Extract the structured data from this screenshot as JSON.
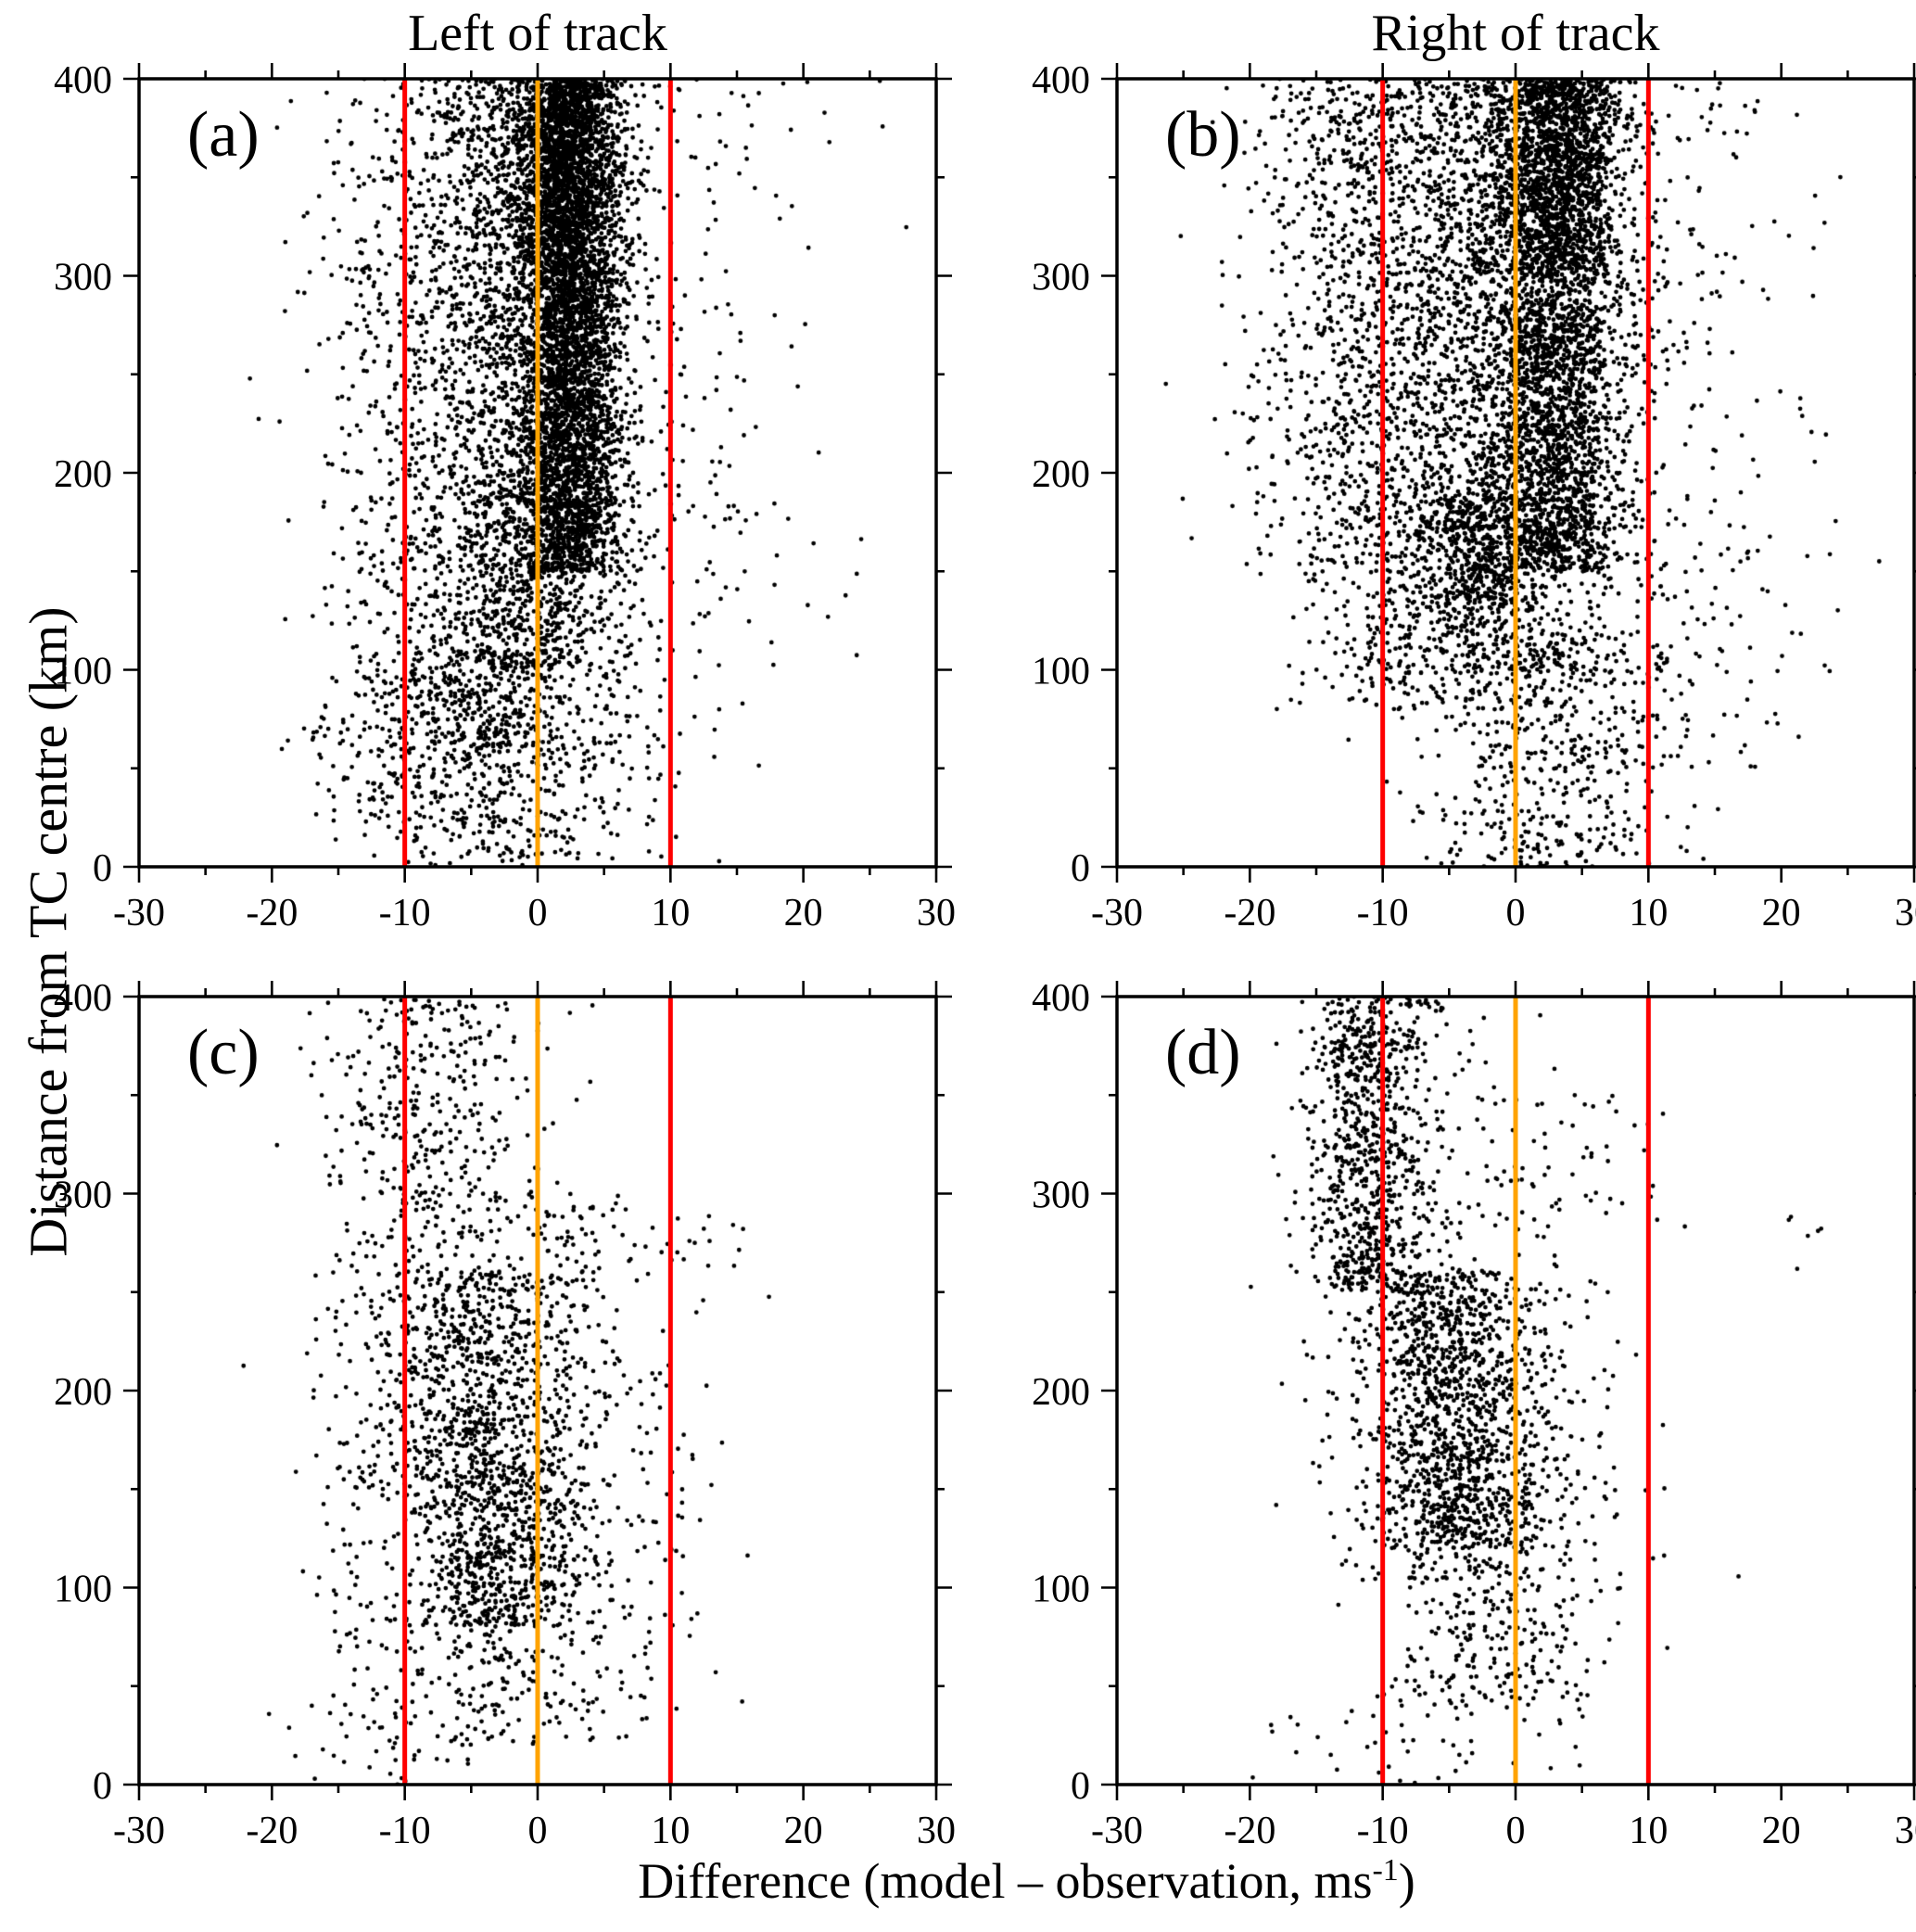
{
  "chart_data": {
    "type": "scatter",
    "layout": "2x2",
    "col_titles": [
      "Left of track",
      "Right of track"
    ],
    "xlabel_main": "Difference (model – observation, ms",
    "xlabel_sup": "-1",
    "xlabel_close": ")",
    "ylabel": "Distance from TC centre (km)",
    "x_range": [
      -30,
      30
    ],
    "y_range": [
      0,
      400
    ],
    "x_major_ticks": [
      -30,
      -20,
      -10,
      0,
      10,
      20,
      30
    ],
    "x_minor_step": 5,
    "y_major_ticks": [
      0,
      100,
      200,
      300,
      400
    ],
    "y_minor_step": 50,
    "grid": false,
    "legend": false,
    "marker": {
      "color": "#000000",
      "radius": 2.4
    },
    "frame_color": "#000000",
    "ref_lines": [
      {
        "x": -10,
        "color": "#fe0000",
        "width": 5
      },
      {
        "x": 0,
        "color": "#ffa300",
        "width": 5
      },
      {
        "x": 10,
        "color": "#fe0000",
        "width": 5
      }
    ],
    "cluster_encoding": "x gaussian (x_mean, x_sd), y uniform (y_min, y_max), n points each; deterministic seed per panel",
    "panels": [
      {
        "label": "(a)",
        "seed": 11,
        "clusters": [
          {
            "n": 3600,
            "x_mean": 2.5,
            "x_sd": 2.0,
            "y_min": 150,
            "y_max": 400
          },
          {
            "n": 900,
            "x_mean": 2.0,
            "x_sd": 1.6,
            "y_min": 300,
            "y_max": 400
          },
          {
            "n": 1500,
            "x_mean": 1.0,
            "x_sd": 3.2,
            "y_min": 100,
            "y_max": 400
          },
          {
            "n": 1300,
            "x_mean": -3.5,
            "x_sd": 3.5,
            "y_min": 60,
            "y_max": 400
          },
          {
            "n": 750,
            "x_mean": -9.0,
            "x_sd": 4.5,
            "y_min": 20,
            "y_max": 400
          },
          {
            "n": 600,
            "x_mean": -3.0,
            "x_sd": 5.5,
            "y_min": 0,
            "y_max": 110
          },
          {
            "n": 280,
            "x_mean": 7.0,
            "x_sd": 5.0,
            "y_min": 40,
            "y_max": 400
          },
          {
            "n": 80,
            "x_mean": 14.0,
            "x_sd": 6.0,
            "y_min": 100,
            "y_max": 400
          }
        ]
      },
      {
        "label": "(b)",
        "seed": 22,
        "clusters": [
          {
            "n": 2800,
            "x_mean": 3.0,
            "x_sd": 2.6,
            "y_min": 150,
            "y_max": 400
          },
          {
            "n": 700,
            "x_mean": 3.5,
            "x_sd": 2.2,
            "y_min": 300,
            "y_max": 400
          },
          {
            "n": 1700,
            "x_mean": -1.0,
            "x_sd": 4.0,
            "y_min": 100,
            "y_max": 400
          },
          {
            "n": 1200,
            "x_mean": -8.0,
            "x_sd": 4.0,
            "y_min": 80,
            "y_max": 400
          },
          {
            "n": 500,
            "x_mean": -14.0,
            "x_sd": 3.5,
            "y_min": 150,
            "y_max": 400
          },
          {
            "n": 350,
            "x_mean": -3.0,
            "x_sd": 2.0,
            "y_min": 130,
            "y_max": 190
          },
          {
            "n": 500,
            "x_mean": 2.0,
            "x_sd": 5.0,
            "y_min": 0,
            "y_max": 120
          },
          {
            "n": 320,
            "x_mean": 9.0,
            "x_sd": 5.0,
            "y_min": 50,
            "y_max": 400
          },
          {
            "n": 90,
            "x_mean": 16.0,
            "x_sd": 6.0,
            "y_min": 50,
            "y_max": 400
          }
        ]
      },
      {
        "label": "(c)",
        "seed": 33,
        "clusters": [
          {
            "n": 900,
            "x_mean": -4.0,
            "x_sd": 3.0,
            "y_min": 80,
            "y_max": 260
          },
          {
            "n": 520,
            "x_mean": -7.0,
            "x_sd": 4.0,
            "y_min": 150,
            "y_max": 400
          },
          {
            "n": 470,
            "x_mean": -2.0,
            "x_sd": 4.0,
            "y_min": 20,
            "y_max": 160
          },
          {
            "n": 320,
            "x_mean": -11.0,
            "x_sd": 3.5,
            "y_min": 0,
            "y_max": 400
          },
          {
            "n": 260,
            "x_mean": 2.0,
            "x_sd": 3.0,
            "y_min": 100,
            "y_max": 300
          },
          {
            "n": 90,
            "x_mean": 8.0,
            "x_sd": 4.0,
            "y_min": 30,
            "y_max": 300
          },
          {
            "n": 8,
            "x_mean": 12.0,
            "x_sd": 2.0,
            "y_min": 250,
            "y_max": 290
          }
        ]
      },
      {
        "label": "(d)",
        "seed": 44,
        "clusters": [
          {
            "n": 750,
            "x_mean": -11.0,
            "x_sd": 2.2,
            "y_min": 250,
            "y_max": 400
          },
          {
            "n": 950,
            "x_mean": -5.0,
            "x_sd": 3.0,
            "y_min": 120,
            "y_max": 260
          },
          {
            "n": 470,
            "x_mean": -2.0,
            "x_sd": 4.0,
            "y_min": 40,
            "y_max": 220
          },
          {
            "n": 320,
            "x_mean": -8.0,
            "x_sd": 4.0,
            "y_min": 100,
            "y_max": 400
          },
          {
            "n": 220,
            "x_mean": 2.0,
            "x_sd": 4.0,
            "y_min": 60,
            "y_max": 350
          },
          {
            "n": 70,
            "x_mean": -5.0,
            "x_sd": 6.0,
            "y_min": 0,
            "y_max": 60
          },
          {
            "n": 6,
            "x_mean": 22.5,
            "x_sd": 1.2,
            "y_min": 260,
            "y_max": 290
          }
        ]
      }
    ]
  }
}
